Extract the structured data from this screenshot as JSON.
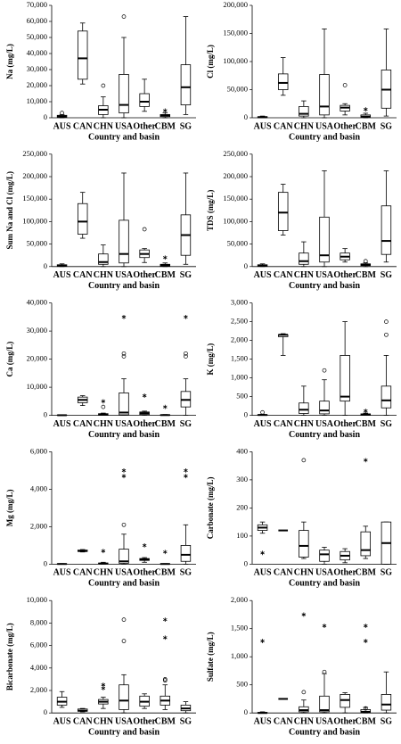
{
  "chart_data": [
    {
      "type": "box",
      "ylabel": "Na (mg/L)",
      "xlabel": "Country and basin",
      "categories": [
        "AUS",
        "CAN",
        "CHN",
        "USA",
        "Other",
        "CBM",
        "SG"
      ],
      "ylim": [
        0,
        70000
      ],
      "yticks": [
        0,
        {
          "value": 10000,
          "label": "10,000"
        },
        {
          "value": 20000,
          "label": "20,000"
        },
        {
          "value": 30000,
          "label": "30,000"
        },
        {
          "value": 40000,
          "label": "40,000"
        },
        {
          "value": 50000,
          "label": "50,000"
        },
        {
          "value": 60000,
          "label": "60,000"
        },
        {
          "value": 70000,
          "label": "70,000"
        }
      ],
      "boxes": [
        {
          "min": 0,
          "q1": 300,
          "median": 800,
          "q3": 1500,
          "max": 2000,
          "outliers": [
            3000
          ]
        },
        {
          "min": 21000,
          "q1": 24000,
          "median": 37000,
          "q3": 54000,
          "max": 59000
        },
        {
          "min": 0,
          "q1": 2000,
          "median": 5000,
          "q3": 7500,
          "max": 13000,
          "outliers": [
            20000
          ]
        },
        {
          "min": 0,
          "q1": 3000,
          "median": 8000,
          "q3": 27000,
          "max": 50000,
          "outliers": [
            63000
          ]
        },
        {
          "min": 4000,
          "q1": 7000,
          "median": 10000,
          "q3": 15000,
          "max": 24000
        },
        {
          "min": 0,
          "q1": 700,
          "median": 1500,
          "q3": 2000,
          "max": 3000,
          "extremes": [
            4500
          ]
        },
        {
          "min": 2000,
          "q1": 8000,
          "median": 19000,
          "q3": 33000,
          "max": 63000
        }
      ]
    },
    {
      "type": "box",
      "ylabel": "Cl (mg/L)",
      "xlabel": "Country and basin",
      "categories": [
        "AUS",
        "CAN",
        "CHN",
        "USA",
        "Other",
        "CBM",
        "SG"
      ],
      "ylim": [
        0,
        200000
      ],
      "yticks": [
        0,
        {
          "value": 50000,
          "label": "50,000"
        },
        {
          "value": 100000,
          "label": "100,000"
        },
        {
          "value": 150000,
          "label": "150,000"
        },
        {
          "value": 200000,
          "label": "200,000"
        }
      ],
      "boxes": [
        {
          "min": 0,
          "q1": 500,
          "median": 1000,
          "q3": 2000,
          "max": 3000
        },
        {
          "min": 40000,
          "q1": 50000,
          "median": 62000,
          "q3": 78000,
          "max": 107000
        },
        {
          "min": 0,
          "q1": 3000,
          "median": 7000,
          "q3": 20000,
          "max": 30000
        },
        {
          "min": 0,
          "q1": 5000,
          "median": 20000,
          "q3": 77000,
          "max": 158000
        },
        {
          "min": 5000,
          "q1": 12000,
          "median": 18000,
          "q3": 22000,
          "max": 25000,
          "outliers": [
            58000
          ]
        },
        {
          "min": 0,
          "q1": 1000,
          "median": 2000,
          "q3": 5000,
          "max": 8000,
          "extremes": [
            15000
          ]
        },
        {
          "min": 3000,
          "q1": 17000,
          "median": 50000,
          "q3": 85000,
          "max": 158000
        }
      ]
    },
    {
      "type": "box",
      "ylabel": "Sum Na and Cl (mg/L)",
      "xlabel": "Country and basin",
      "categories": [
        "AUS",
        "CAN",
        "CHN",
        "USA",
        "Other",
        "CBM",
        "SG"
      ],
      "ylim": [
        0,
        250000
      ],
      "yticks": [
        0,
        {
          "value": 50000,
          "label": "50,000"
        },
        {
          "value": 100000,
          "label": "100,000"
        },
        {
          "value": 150000,
          "label": "150,000"
        },
        {
          "value": 200000,
          "label": "200,000"
        },
        {
          "value": 250000,
          "label": "250,000"
        }
      ],
      "boxes": [
        {
          "min": 0,
          "q1": 1000,
          "median": 2000,
          "q3": 4000,
          "max": 6000
        },
        {
          "min": 63000,
          "q1": 72000,
          "median": 100000,
          "q3": 140000,
          "max": 165000
        },
        {
          "min": 0,
          "q1": 5000,
          "median": 10000,
          "q3": 28000,
          "max": 48000
        },
        {
          "min": 0,
          "q1": 8000,
          "median": 28000,
          "q3": 103000,
          "max": 208000
        },
        {
          "min": 9000,
          "q1": 20000,
          "median": 28000,
          "q3": 37000,
          "max": 40000,
          "outliers": [
            83000
          ]
        },
        {
          "min": 0,
          "q1": 1000,
          "median": 3000,
          "q3": 5000,
          "max": 8000,
          "extremes": [
            20000
          ]
        },
        {
          "min": 5000,
          "q1": 25000,
          "median": 70000,
          "q3": 115000,
          "max": 208000
        }
      ]
    },
    {
      "type": "box",
      "ylabel": "TDS (mg/L)",
      "xlabel": "Country and basin",
      "categories": [
        "AUS",
        "CAN",
        "CHN",
        "USA",
        "Other",
        "CBM",
        "SG"
      ],
      "ylim": [
        0,
        250000
      ],
      "yticks": [
        0,
        {
          "value": 50000,
          "label": "50,000"
        },
        {
          "value": 100000,
          "label": "100,000"
        },
        {
          "value": 150000,
          "label": "150,000"
        },
        {
          "value": 200000,
          "label": "200,000"
        },
        {
          "value": 250000,
          "label": "250,000"
        }
      ],
      "boxes": [
        {
          "min": 0,
          "q1": 1000,
          "median": 2000,
          "q3": 4000,
          "max": 6000
        },
        {
          "min": 70000,
          "q1": 80000,
          "median": 120000,
          "q3": 165000,
          "max": 183000
        },
        {
          "min": 0,
          "q1": 5000,
          "median": 12000,
          "q3": 30000,
          "max": 55000
        },
        {
          "min": 0,
          "q1": 10000,
          "median": 25000,
          "q3": 110000,
          "max": 213000
        },
        {
          "min": 10000,
          "q1": 15000,
          "median": 22000,
          "q3": 30000,
          "max": 40000
        },
        {
          "min": 0,
          "q1": 2000,
          "median": 4000,
          "q3": 6000,
          "max": 8000,
          "outliers": [
            12000
          ]
        },
        {
          "min": 10000,
          "q1": 27000,
          "median": 57000,
          "q3": 135000,
          "max": 213000
        }
      ]
    },
    {
      "type": "box",
      "ylabel": "Ca (mg/L)",
      "xlabel": "Country and basin",
      "categories": [
        "AUS",
        "CAN",
        "CHN",
        "USA",
        "Other",
        "CBM",
        "SG"
      ],
      "ylim": [
        0,
        40000
      ],
      "yticks": [
        0,
        {
          "value": 10000,
          "label": "10,000"
        },
        {
          "value": 20000,
          "label": "20,000"
        },
        {
          "value": 30000,
          "label": "30,000"
        },
        {
          "value": 40000,
          "label": "40,000"
        }
      ],
      "boxes": [
        {
          "min": 0,
          "q1": 0,
          "median": 50,
          "q3": 100,
          "max": 150
        },
        {
          "min": 3500,
          "q1": 4500,
          "median": 5500,
          "q3": 6500,
          "max": 7000
        },
        {
          "min": 0,
          "q1": 100,
          "median": 300,
          "q3": 600,
          "max": 800,
          "outliers": [
            3000
          ],
          "extremes": [
            5000
          ]
        },
        {
          "min": 0,
          "q1": 200,
          "median": 1000,
          "q3": 8000,
          "max": 13000,
          "outliers": [
            21000,
            22000
          ],
          "extremes": [
            35000
          ]
        },
        {
          "min": 0,
          "q1": 300,
          "median": 800,
          "q3": 1200,
          "max": 1500,
          "extremes": [
            7000
          ]
        },
        {
          "min": 0,
          "q1": 50,
          "median": 100,
          "q3": 200,
          "max": 300,
          "extremes": [
            3000
          ]
        },
        {
          "min": 0,
          "q1": 3000,
          "median": 5500,
          "q3": 8500,
          "max": 13000,
          "outliers": [
            21000,
            22000
          ],
          "extremes": [
            35000
          ]
        }
      ]
    },
    {
      "type": "box",
      "ylabel": "K (mg/L)",
      "xlabel": "Country and basin",
      "categories": [
        "AUS",
        "CAN",
        "CHN",
        "USA",
        "Other",
        "CBM",
        "SG"
      ],
      "ylim": [
        0,
        3000
      ],
      "yticks": [
        0,
        500,
        {
          "value": 1000,
          "label": "1,000"
        },
        {
          "value": 1500,
          "label": "1,500"
        },
        {
          "value": 2000,
          "label": "2,000"
        },
        {
          "value": 2500,
          "label": "2,500"
        },
        {
          "value": 3000,
          "label": "3,000"
        }
      ],
      "boxes": [
        {
          "min": 0,
          "q1": 5,
          "median": 10,
          "q3": 20,
          "max": 30,
          "outliers": [
            80
          ]
        },
        {
          "min": 1600,
          "q1": 2100,
          "median": 2150,
          "q3": 2150,
          "max": 2180
        },
        {
          "min": 0,
          "q1": 50,
          "median": 150,
          "q3": 330,
          "max": 780
        },
        {
          "min": 0,
          "q1": 40,
          "median": 130,
          "q3": 380,
          "max": 950,
          "outliers": [
            1200
          ]
        },
        {
          "min": 0,
          "q1": 380,
          "median": 500,
          "q3": 1600,
          "max": 2500
        },
        {
          "min": 0,
          "q1": 5,
          "median": 20,
          "q3": 40,
          "max": 60,
          "extremes": [
            120
          ]
        },
        {
          "min": 0,
          "q1": 200,
          "median": 400,
          "q3": 780,
          "max": 1600,
          "outliers": [
            2150,
            2500
          ]
        }
      ]
    },
    {
      "type": "box",
      "ylabel": "Mg (mg/L)",
      "xlabel": "Country and basin",
      "categories": [
        "AUS",
        "CAN",
        "CHN",
        "USA",
        "Other",
        "CBM",
        "SG"
      ],
      "ylim": [
        0,
        6000
      ],
      "yticks": [
        0,
        {
          "value": 2000,
          "label": "2,000"
        },
        {
          "value": 4000,
          "label": "4,000"
        },
        {
          "value": 6000,
          "label": "6,000"
        }
      ],
      "boxes": [
        {
          "min": 0,
          "q1": 0,
          "median": 10,
          "q3": 20,
          "max": 30
        },
        {
          "min": 650,
          "q1": 680,
          "median": 700,
          "q3": 750,
          "max": 780
        },
        {
          "min": 0,
          "q1": 10,
          "median": 30,
          "q3": 60,
          "max": 100,
          "extremes": [
            700
          ]
        },
        {
          "min": 0,
          "q1": 50,
          "median": 150,
          "q3": 800,
          "max": 1600,
          "outliers": [
            2100
          ],
          "extremes": [
            4700,
            5000
          ]
        },
        {
          "min": 100,
          "q1": 200,
          "median": 250,
          "q3": 300,
          "max": 350,
          "extremes": [
            1000
          ]
        },
        {
          "min": 0,
          "q1": 5,
          "median": 10,
          "q3": 20,
          "max": 30,
          "extremes": [
            650
          ]
        },
        {
          "min": 0,
          "q1": 150,
          "median": 500,
          "q3": 1000,
          "max": 2100,
          "extremes": [
            4700,
            5000
          ]
        }
      ]
    },
    {
      "type": "box",
      "ylabel": "Carbonate (mg/L)",
      "xlabel": "Country and basin",
      "categories": [
        "AUS",
        "CAN",
        "CHN",
        "USA",
        "Other",
        "CBM",
        "SG"
      ],
      "ylim": [
        0,
        400
      ],
      "yticks": [
        0,
        100,
        200,
        300,
        400
      ],
      "boxes": [
        {
          "min": 110,
          "q1": 120,
          "median": 130,
          "q3": 140,
          "max": 150,
          "extremes": [
            40
          ]
        },
        {
          "min": 120,
          "q1": 120,
          "median": 120,
          "q3": 120,
          "max": 120
        },
        {
          "min": 20,
          "q1": 25,
          "median": 65,
          "q3": 120,
          "max": 150,
          "outliers": [
            370
          ]
        },
        {
          "min": 0,
          "q1": 10,
          "median": 35,
          "q3": 50,
          "max": 60
        },
        {
          "min": 5,
          "q1": 15,
          "median": 30,
          "q3": 45,
          "max": 55
        },
        {
          "min": 20,
          "q1": 30,
          "median": 50,
          "q3": 115,
          "max": 135,
          "extremes": [
            370
          ]
        },
        {
          "min": 0,
          "q1": 0,
          "median": 75,
          "q3": 150,
          "max": 150
        }
      ]
    },
    {
      "type": "box",
      "ylabel": "Bicarbonate (mg/L)",
      "xlabel": "Country and basin",
      "categories": [
        "AUS",
        "CAN",
        "CHN",
        "USA",
        "Other",
        "CBM",
        "SG"
      ],
      "ylim": [
        0,
        10000
      ],
      "yticks": [
        0,
        {
          "value": 2000,
          "label": "2,000"
        },
        {
          "value": 4000,
          "label": "4,000"
        },
        {
          "value": 6000,
          "label": "6,000"
        },
        {
          "value": 8000,
          "label": "8,000"
        },
        {
          "value": 10000,
          "label": "10,000"
        }
      ],
      "boxes": [
        {
          "min": 500,
          "q1": 700,
          "median": 1000,
          "q3": 1400,
          "max": 1900
        },
        {
          "min": 100,
          "q1": 150,
          "median": 200,
          "q3": 350,
          "max": 400
        },
        {
          "min": 400,
          "q1": 800,
          "median": 1000,
          "q3": 1200,
          "max": 1400,
          "extremes": [
            2200,
            2500
          ]
        },
        {
          "min": 0,
          "q1": 300,
          "median": 1100,
          "q3": 2500,
          "max": 3400,
          "outliers": [
            6400,
            8300
          ]
        },
        {
          "min": 400,
          "q1": 600,
          "median": 1000,
          "q3": 1500,
          "max": 1700
        },
        {
          "min": 300,
          "q1": 700,
          "median": 1100,
          "q3": 1500,
          "max": 2500,
          "outliers": [
            2900,
            3000
          ],
          "extremes": [
            6700,
            8300
          ]
        },
        {
          "min": 0,
          "q1": 200,
          "median": 400,
          "q3": 700,
          "max": 1000
        }
      ]
    },
    {
      "type": "box",
      "ylabel": "Sulfate (mg/L)",
      "xlabel": "Country and basin",
      "categories": [
        "AUS",
        "CAN",
        "CHN",
        "USA",
        "Other",
        "CBM",
        "SG"
      ],
      "ylim": [
        0,
        2000
      ],
      "yticks": [
        0,
        500,
        {
          "value": 1000,
          "label": "1,000"
        },
        {
          "value": 1500,
          "label": "1,500"
        },
        {
          "value": 2000,
          "label": "2,000"
        }
      ],
      "boxes": [
        {
          "min": 0,
          "q1": 0,
          "median": 0,
          "q3": 10,
          "max": 20,
          "extremes": [
            1280
          ]
        },
        {
          "min": 250,
          "q1": 250,
          "median": 250,
          "q3": 250,
          "max": 250
        },
        {
          "min": 0,
          "q1": 20,
          "median": 50,
          "q3": 110,
          "max": 230,
          "outliers": [
            370
          ],
          "extremes": [
            1750
          ]
        },
        {
          "min": 0,
          "q1": 20,
          "median": 50,
          "q3": 300,
          "max": 700,
          "outliers": [
            730
          ],
          "extremes": [
            1550
          ]
        },
        {
          "min": 0,
          "q1": 100,
          "median": 230,
          "q3": 330,
          "max": 360
        },
        {
          "min": 0,
          "q1": 10,
          "median": 20,
          "q3": 60,
          "max": 100,
          "outliers": [
            80
          ],
          "extremes": [
            1280,
            1550
          ]
        },
        {
          "min": 0,
          "q1": 50,
          "median": 150,
          "q3": 330,
          "max": 730
        }
      ]
    }
  ]
}
